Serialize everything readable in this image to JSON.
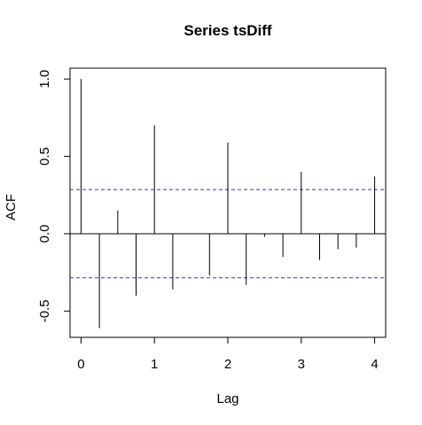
{
  "chart_data": {
    "type": "bar",
    "title": "Series  tsDiff",
    "xlabel": "Lag",
    "ylabel": "ACF",
    "xlim": [
      -0.15,
      4.15
    ],
    "ylim": [
      -0.67,
      1.07
    ],
    "x_ticks": [
      "0",
      "1",
      "2",
      "3",
      "4"
    ],
    "y_ticks": [
      "-0.5",
      "0.0",
      "0.5",
      "1.0"
    ],
    "grid": false,
    "lags": [
      0,
      0.25,
      0.5,
      0.75,
      1,
      1.25,
      1.5,
      1.75,
      2,
      2.25,
      2.5,
      2.75,
      3,
      3.25,
      3.5,
      3.75,
      4
    ],
    "values": [
      1.0,
      -0.61,
      0.15,
      -0.4,
      0.7,
      -0.36,
      0.0,
      -0.27,
      0.59,
      -0.33,
      -0.02,
      -0.15,
      0.4,
      -0.17,
      -0.1,
      -0.09,
      0.37
    ],
    "confidence_bound": 0.285,
    "colors": {
      "bars": "#000000",
      "axes": "#000000",
      "confidence_lines": "#3333cc"
    }
  }
}
